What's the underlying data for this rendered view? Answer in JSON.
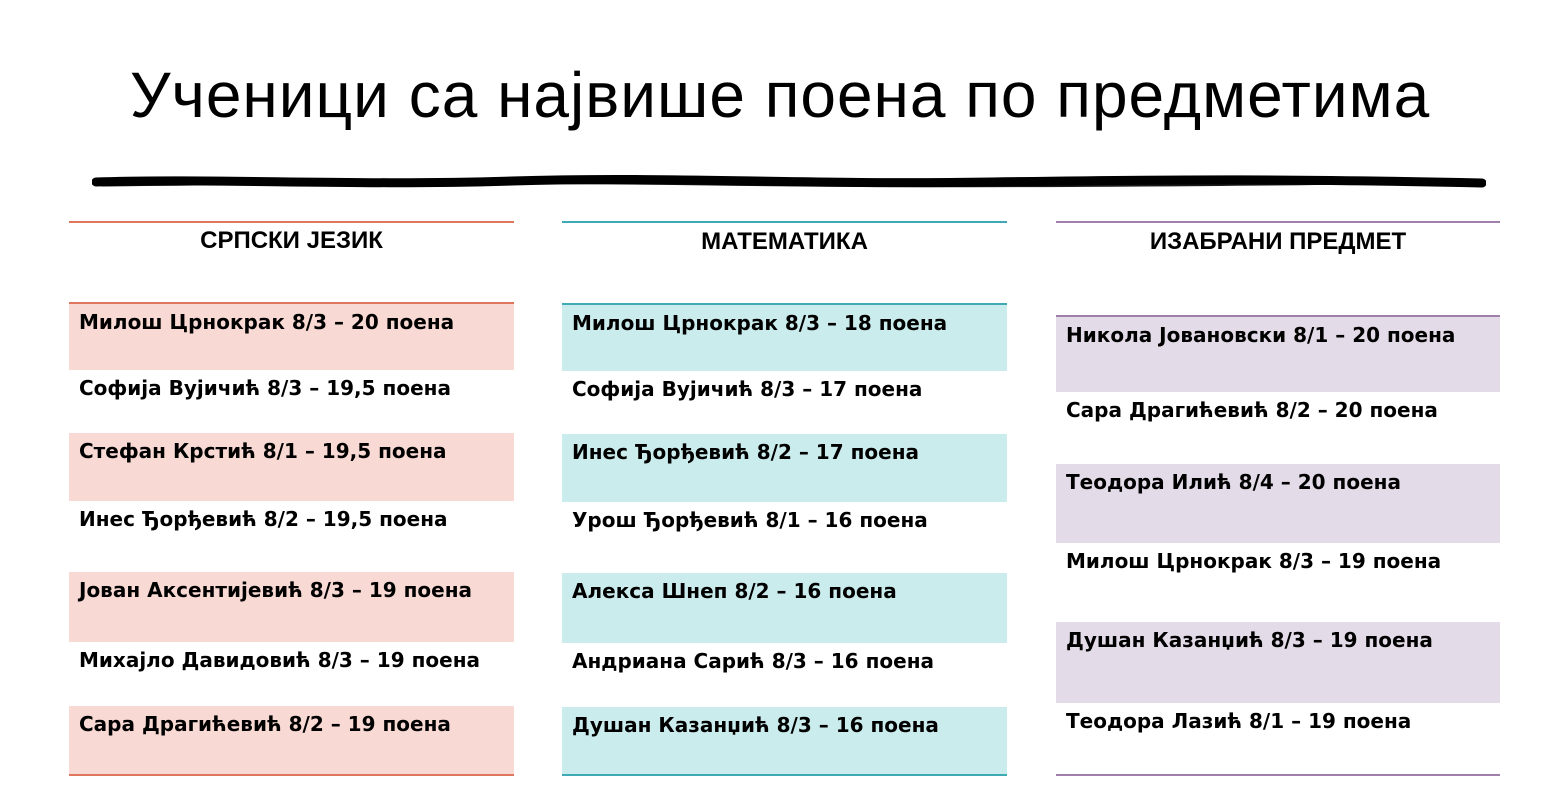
{
  "title": "Ученици са највише поена по предметима",
  "colors": {
    "srpski_accent": "#e0765e",
    "srpski_shade": "#f9d9d3",
    "matematika_accent": "#3fa9b4",
    "matematika_shade": "#caeced",
    "izabrani_accent": "#a07fad",
    "izabrani_shade": "#e4dbe8"
  },
  "columns": [
    {
      "header": "СРПСКИ ЈЕЗИК",
      "rows": [
        "Милош Црнокрак 8/3 – 20 поена",
        "Софија Вујичић 8/3 – 19,5 поена",
        "Стефан Крстић 8/1 – 19,5 поена",
        "Инес Ђорђевић 8/2 – 19,5 поена",
        "Јован Аксентијевић 8/3 – 19 поена",
        "Михајло Давидовић 8/3 – 19 поена",
        "Сара Драгићевић 8/2 – 19 поена"
      ]
    },
    {
      "header": "МАТЕМАТИКА",
      "rows": [
        "Милош Црнокрак 8/3 – 18 поена",
        "Софија Вујичић 8/3 – 17 поена",
        "Инес Ђорђевић 8/2 – 17 поена",
        "Урош Ђорђевић 8/1 – 16 поена",
        "Алекса Шнеп 8/2 – 16 поена",
        "Андриана Сарић 8/3 – 16 поена",
        "Душан Казанџић 8/3 – 16 поена"
      ]
    },
    {
      "header": "ИЗАБРАНИ ПРЕДМЕТ",
      "rows": [
        "Никола Јовановски 8/1 – 20 поена",
        "Сара Драгићевић 8/2 – 20 поена",
        "Теодора Илић 8/4 – 20 поена",
        "Милош Црнокрак 8/3 – 19 поена",
        "Душан Казанџић 8/3 – 19 поена",
        "Теодора Лазић 8/1 – 19 поена"
      ]
    }
  ]
}
